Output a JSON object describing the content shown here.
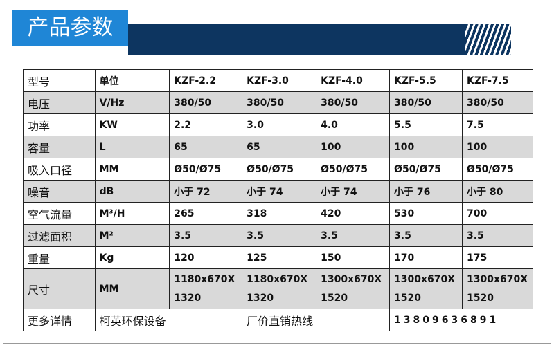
{
  "header": {
    "title": "产品参数"
  },
  "table": {
    "rows": [
      [
        "型号",
        "单位",
        "KZF-2.2",
        "KZF-3.0",
        "KZF-4.0",
        "KZF-5.5",
        "KZF-7.5"
      ],
      [
        "电压",
        "V/Hz",
        "380/50",
        "380/50",
        "380/50",
        "380/50",
        "380/50"
      ],
      [
        "功率",
        "KW",
        "2.2",
        "3.0",
        "4.0",
        "5.5",
        "7.5"
      ],
      [
        "容量",
        "L",
        "65",
        "65",
        "100",
        "100",
        "100"
      ],
      [
        "吸入口径",
        "MM",
        "Ø50/Ø75",
        "Ø50/Ø75",
        "Ø50/Ø75",
        "Ø50/Ø75",
        "Ø50/Ø75"
      ],
      [
        "噪音",
        "dB",
        "小于 72",
        "小于 74",
        "小于 74",
        "小于 76",
        "小于 80"
      ],
      [
        "空气流量",
        "M³/H",
        "265",
        "318",
        "420",
        "530",
        "700"
      ],
      [
        "过滤面积",
        "M²",
        "3.5",
        "3.5",
        "3.5",
        "3.5",
        "3.5"
      ],
      [
        "重量",
        "Kg",
        "120",
        "125",
        "150",
        "170",
        "175"
      ],
      [
        "尺寸",
        "MM",
        "1180x670X 1320",
        "1180x670X 1320",
        "1300x670X 1520",
        "1300x670X 1520",
        "1300x670X 1520"
      ],
      [
        "更多详情",
        "柯英环保设备",
        "厂价直销热线",
        "13809636891"
      ]
    ]
  }
}
